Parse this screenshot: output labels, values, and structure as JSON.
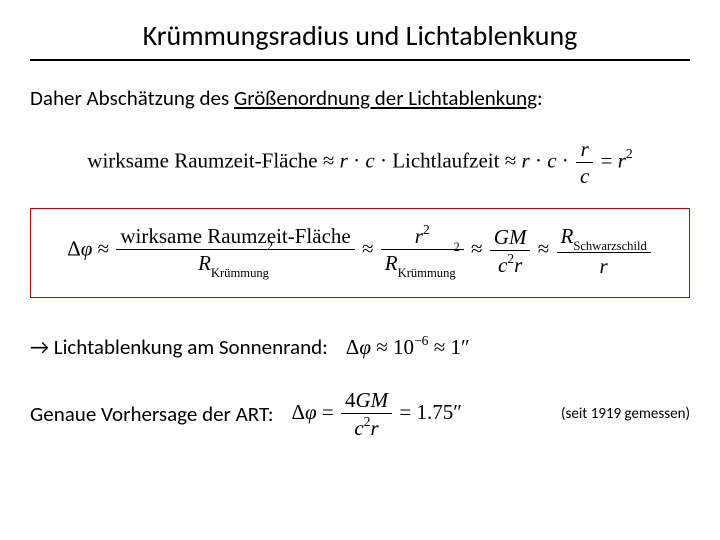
{
  "title": "Krümmungsradius und Lichtablenkung",
  "intro_prefix": "Daher Abschätzung des ",
  "intro_underlined": "Größenordnung der Lichtablenkung",
  "intro_colon": ":",
  "eq1": {
    "lhs": "wirksame Raumzeit-Fläche",
    "approx": "≈",
    "part2a": "r",
    "cdot": "·",
    "part2b": "c",
    "part2c": "Lichtlaufzeit",
    "part3a": "r",
    "part3b": "c",
    "frac_num": "r",
    "frac_den": "c",
    "eq": "=",
    "rhs": "r",
    "rhs_exp": "2"
  },
  "eq2": {
    "delta": "Δ",
    "phi": "φ",
    "approx": "≈",
    "num1": "wirksame Raumzeit-Fläche",
    "den1_base": "R",
    "den1_sub": "Krümmung",
    "den1_exp": "2",
    "num2_base": "r",
    "num2_exp": "2",
    "den2_base": "R",
    "den2_sub": "Krümmung",
    "den2_exp": "2",
    "num3": "GM",
    "den3a": "c",
    "den3a_exp": "2",
    "den3b": "r",
    "num4_base": "R",
    "num4_sub": "Schwarzschild",
    "den4": "r"
  },
  "row1": {
    "arrow": "→",
    "text": " Lichtablenkung am ",
    "highlight": "Sonnen",
    "text_after": "rand:",
    "delta": "Δ",
    "phi": "φ",
    "approx": "≈",
    "ten": "10",
    "exp": "−6",
    "approx2": "≈",
    "val": "1″"
  },
  "row2": {
    "text": "Genaue Vorhersage der ART:",
    "delta": "Δ",
    "phi": "φ",
    "eq": "=",
    "num": "4",
    "num2": "GM",
    "den_a": "c",
    "den_a_exp": "2",
    "den_b": "r",
    "eq2": "=",
    "val": "1.75″",
    "note": "(seit 1919 gemessen)"
  },
  "colors": {
    "box_border": "#c00000",
    "text": "#000000",
    "bg": "#ffffff"
  },
  "font_sizes": {
    "title": 28,
    "body": 21,
    "note": 15
  }
}
